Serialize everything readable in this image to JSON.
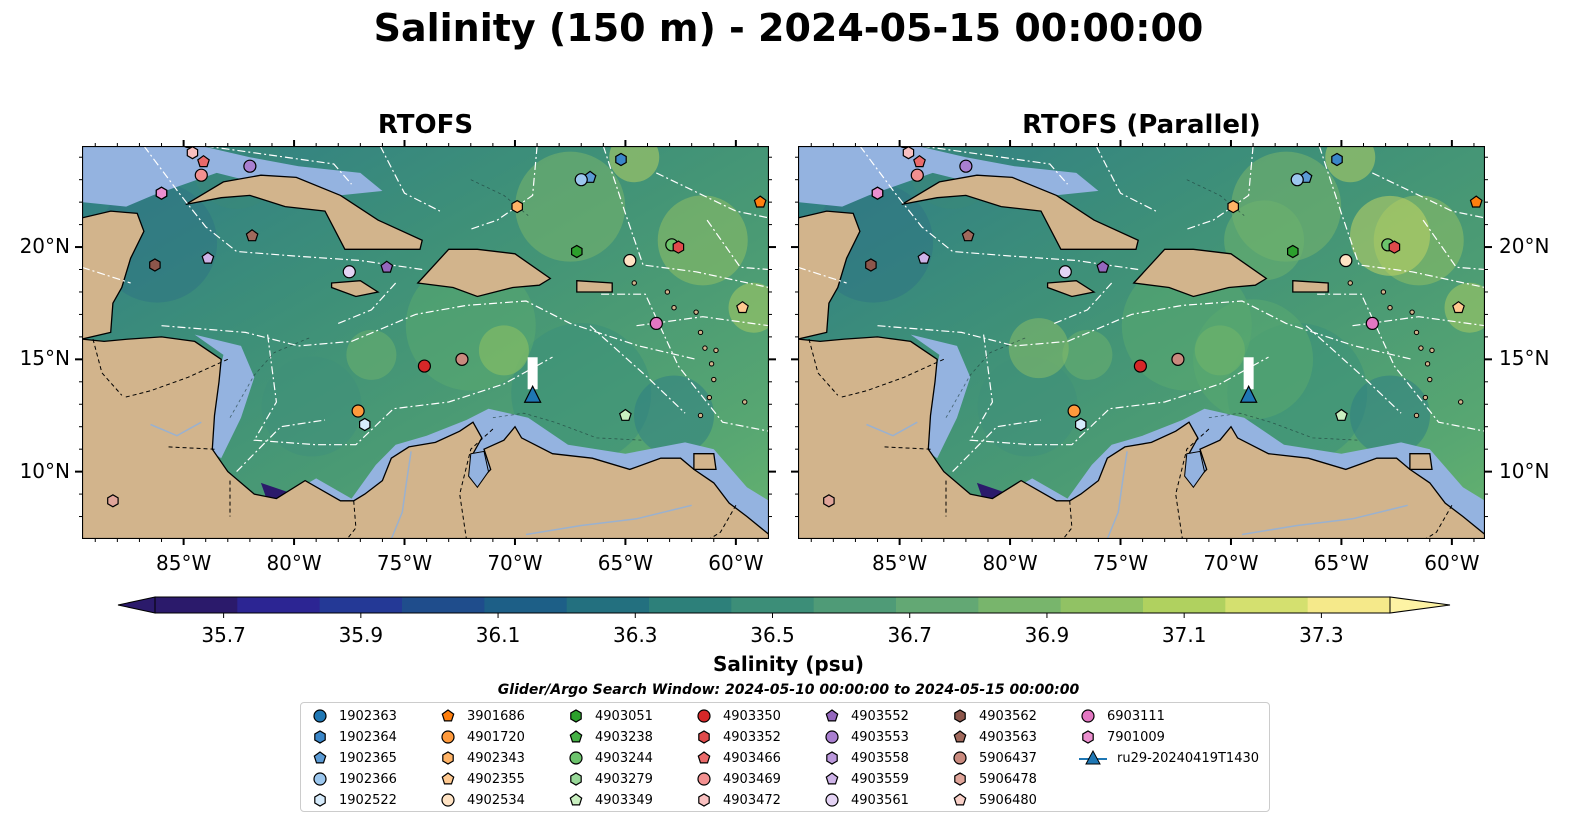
{
  "title": "Salinity (150 m) - 2024-05-15 00:00:00",
  "panels": [
    {
      "title": "RTOFS",
      "variant": "a"
    },
    {
      "title": "RTOFS (Parallel)",
      "variant": "b"
    }
  ],
  "lat_ticks": [
    "20°N",
    "15°N",
    "10°N"
  ],
  "lon_ticks": [
    "85°W",
    "80°W",
    "75°W",
    "70°W",
    "65°W",
    "60°W"
  ],
  "map_extent": {
    "lon": [
      -89.6,
      -58.5
    ],
    "lat": [
      7.0,
      24.5
    ]
  },
  "colorbar": {
    "label": "Salinity (psu)",
    "ticks": [
      "35.7",
      "35.9",
      "36.1",
      "36.3",
      "36.5",
      "36.7",
      "36.9",
      "37.1",
      "37.3"
    ],
    "min": 35.6,
    "max": 37.4,
    "colors": [
      "#2b1a6b",
      "#2c2593",
      "#243996",
      "#1f4d8c",
      "#1d5f87",
      "#23707f",
      "#2d807a",
      "#3c8e78",
      "#4f9b77",
      "#63a874",
      "#78b56c",
      "#91c264",
      "#b0d15f",
      "#d4e06f",
      "#f5e98a"
    ],
    "extend_min_color": "#2b1a6b",
    "extend_max_color": "#fdf3a4"
  },
  "search_window": "Glider/Argo Search Window: 2024-05-10 00:00:00 to 2024-05-15 00:00:00",
  "legend": [
    {
      "label": "1902363",
      "marker": "circle",
      "color": "#1f77b4"
    },
    {
      "label": "1902364",
      "marker": "hexagon",
      "color": "#3a86c8"
    },
    {
      "label": "1902365",
      "marker": "pentagon",
      "color": "#5b9bd5"
    },
    {
      "label": "1902366",
      "marker": "circle",
      "color": "#9cc7ee"
    },
    {
      "label": "1902522",
      "marker": "hexagon",
      "color": "#d6ebfb"
    },
    {
      "label": "3901686",
      "marker": "pentagon",
      "color": "#ff7f0e"
    },
    {
      "label": "4901720",
      "marker": "circle",
      "color": "#ff9a3c"
    },
    {
      "label": "4902343",
      "marker": "hexagon",
      "color": "#ffb366"
    },
    {
      "label": "4902355",
      "marker": "pentagon",
      "color": "#ffc990"
    },
    {
      "label": "4902534",
      "marker": "circle",
      "color": "#ffe3c4"
    },
    {
      "label": "4903051",
      "marker": "hexagon",
      "color": "#2ca02c"
    },
    {
      "label": "4903238",
      "marker": "pentagon",
      "color": "#45b045"
    },
    {
      "label": "4903244",
      "marker": "circle",
      "color": "#6cc36c"
    },
    {
      "label": "4903279",
      "marker": "hexagon",
      "color": "#98d898"
    },
    {
      "label": "4903349",
      "marker": "pentagon",
      "color": "#c9efc0"
    },
    {
      "label": "4903350",
      "marker": "circle",
      "color": "#d62728"
    },
    {
      "label": "4903352",
      "marker": "hexagon",
      "color": "#e04a4b"
    },
    {
      "label": "4903466",
      "marker": "pentagon",
      "color": "#ea6a6a"
    },
    {
      "label": "4903469",
      "marker": "circle",
      "color": "#f29090"
    },
    {
      "label": "4903472",
      "marker": "hexagon",
      "color": "#f9c0c0"
    },
    {
      "label": "4903552",
      "marker": "pentagon",
      "color": "#9467bd"
    },
    {
      "label": "4903553",
      "marker": "circle",
      "color": "#a97fd0"
    },
    {
      "label": "4903558",
      "marker": "hexagon",
      "color": "#bb98dc"
    },
    {
      "label": "4903559",
      "marker": "pentagon",
      "color": "#ceb3e8"
    },
    {
      "label": "4903561",
      "marker": "circle",
      "color": "#e4d3f4"
    },
    {
      "label": "4903562",
      "marker": "hexagon",
      "color": "#8c564b"
    },
    {
      "label": "4903563",
      "marker": "pentagon",
      "color": "#a0695c"
    },
    {
      "label": "5906437",
      "marker": "circle",
      "color": "#c98a7e"
    },
    {
      "label": "5906478",
      "marker": "hexagon",
      "color": "#e0a59a"
    },
    {
      "label": "5906480",
      "marker": "pentagon",
      "color": "#f8d0c8"
    },
    {
      "label": "6903111",
      "marker": "circle",
      "color": "#e377c2"
    },
    {
      "label": "7901009",
      "marker": "hexagon",
      "color": "#ec8fcf"
    },
    {
      "label": "ru29-20240419T1430",
      "marker": "triangle-line",
      "color": "#1f77b4"
    }
  ],
  "floats": [
    {
      "id": "1902363",
      "marker": "circle",
      "color": "#1f77b4",
      "lon": -84.8,
      "lat": 24.7
    },
    {
      "id": "1902364",
      "marker": "hexagon",
      "color": "#3a86c8",
      "lon": -65.2,
      "lat": 23.9
    },
    {
      "id": "1902365",
      "marker": "pentagon",
      "color": "#5b9bd5",
      "lon": -66.6,
      "lat": 23.1
    },
    {
      "id": "1902366",
      "marker": "circle",
      "color": "#9cc7ee",
      "lon": -67.0,
      "lat": 23.0
    },
    {
      "id": "1902522",
      "marker": "hexagon",
      "color": "#d6ebfb",
      "lon": -76.8,
      "lat": 12.1
    },
    {
      "id": "3901686",
      "marker": "pentagon",
      "color": "#ff7f0e",
      "lon": -58.9,
      "lat": 22.0
    },
    {
      "id": "4901720",
      "marker": "circle",
      "color": "#ff9a3c",
      "lon": -77.1,
      "lat": 12.7
    },
    {
      "id": "4902343",
      "marker": "hexagon",
      "color": "#ffb366",
      "lon": -69.9,
      "lat": 21.8
    },
    {
      "id": "4902355",
      "marker": "pentagon",
      "color": "#ffc990",
      "lon": -59.7,
      "lat": 17.3
    },
    {
      "id": "4902534",
      "marker": "circle",
      "color": "#ffe3c4",
      "lon": -64.8,
      "lat": 19.4
    },
    {
      "id": "4903051",
      "marker": "hexagon",
      "color": "#2ca02c",
      "lon": -67.2,
      "lat": 19.8
    },
    {
      "id": "4903244",
      "marker": "circle",
      "color": "#6cc36c",
      "lon": -62.9,
      "lat": 20.1
    },
    {
      "id": "4903349",
      "marker": "pentagon",
      "color": "#c9efc0",
      "lon": -65.0,
      "lat": 12.5
    },
    {
      "id": "4903350",
      "marker": "circle",
      "color": "#d62728",
      "lon": -74.1,
      "lat": 14.7
    },
    {
      "id": "4903352",
      "marker": "hexagon",
      "color": "#e04a4b",
      "lon": -62.6,
      "lat": 20.0
    },
    {
      "id": "4903466",
      "marker": "pentagon",
      "color": "#ea6a6a",
      "lon": -84.1,
      "lat": 23.8
    },
    {
      "id": "4903469",
      "marker": "circle",
      "color": "#f29090",
      "lon": -84.2,
      "lat": 23.2
    },
    {
      "id": "4903472",
      "marker": "hexagon",
      "color": "#f9c0c0",
      "lon": -84.6,
      "lat": 24.2
    },
    {
      "id": "4903552",
      "marker": "pentagon",
      "color": "#9467bd",
      "lon": -75.8,
      "lat": 19.1
    },
    {
      "id": "4903553",
      "marker": "circle",
      "color": "#a97fd0",
      "lon": -82.0,
      "lat": 23.6
    },
    {
      "id": "4903558",
      "marker": "hexagon",
      "color": "#bb98dc",
      "lon": -86.0,
      "lat": 22.4
    },
    {
      "id": "4903559",
      "marker": "pentagon",
      "color": "#ceb3e8",
      "lon": -83.9,
      "lat": 19.5
    },
    {
      "id": "4903561",
      "marker": "circle",
      "color": "#e4d3f4",
      "lon": -77.5,
      "lat": 18.9
    },
    {
      "id": "4903562",
      "marker": "hexagon",
      "color": "#8c564b",
      "lon": -86.3,
      "lat": 19.2
    },
    {
      "id": "4903563",
      "marker": "pentagon",
      "color": "#a0695c",
      "lon": -81.9,
      "lat": 20.5
    },
    {
      "id": "5906437",
      "marker": "circle",
      "color": "#c98a7e",
      "lon": -72.4,
      "lat": 15.0
    },
    {
      "id": "5906478",
      "marker": "hexagon",
      "color": "#e0a59a",
      "lon": -88.2,
      "lat": 8.7
    },
    {
      "id": "6903111",
      "marker": "circle",
      "color": "#e377c2",
      "lon": -63.6,
      "lat": 16.6
    },
    {
      "id": "7901009",
      "marker": "hexagon",
      "color": "#ec8fcf",
      "lon": -86.0,
      "lat": 22.4
    }
  ],
  "glider": {
    "id": "ru29-20240419T1430",
    "color": "#1f77b4",
    "lon": -69.2,
    "lat": 13.4
  }
}
